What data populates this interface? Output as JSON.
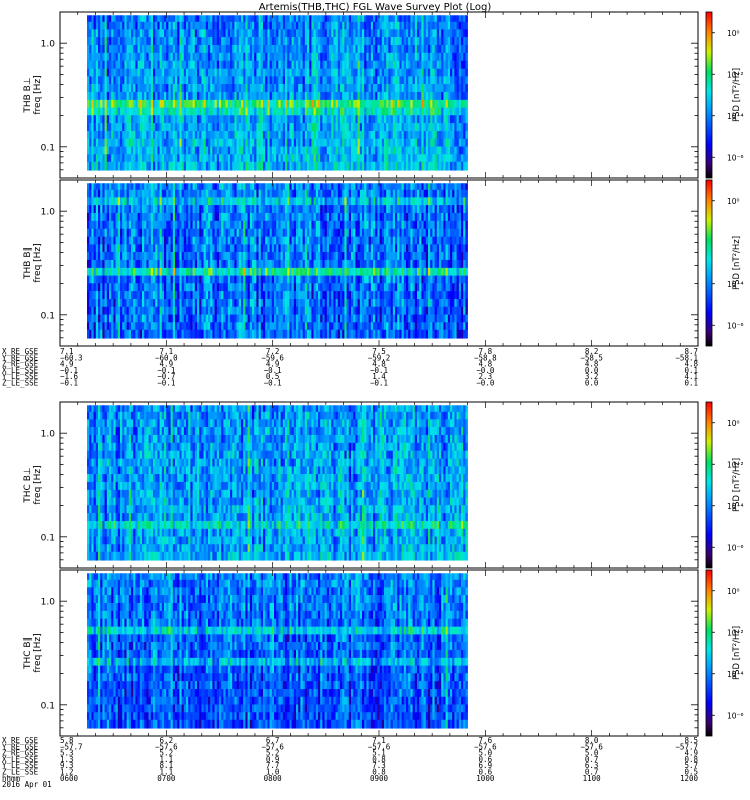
{
  "chart_data": {
    "type": "heatmap",
    "title": "Artemis(THB,THC) FGL Wave Survey Plot (Log)",
    "panels": [
      {
        "id": "thb-bperp",
        "ylabel_probe": "THB B⊥",
        "ylabel_unit": "freq [Hz]",
        "yticks": [
          "1.0",
          "0.1"
        ],
        "colorbar_label": "PSD [nT²/Hz]",
        "colorbar_ticks": [
          "10⁰",
          "10⁻²",
          "10⁻⁴",
          "10⁻⁶"
        ]
      },
      {
        "id": "thb-bpar",
        "ylabel_probe": "THB B∥",
        "ylabel_unit": "freq [Hz]",
        "yticks": [
          "1.0",
          "0.1"
        ],
        "colorbar_label": "PSD [nT²/Hz]",
        "colorbar_ticks": [
          "10⁰",
          "10⁻⁴",
          "10⁻⁶"
        ]
      },
      {
        "id": "thc-bperp",
        "ylabel_probe": "THC B⊥",
        "ylabel_unit": "freq [Hz]",
        "yticks": [
          "1.0",
          "0.1"
        ],
        "colorbar_label": "PSD [nT²/Hz]",
        "colorbar_ticks": [
          "10⁰",
          "10⁻²",
          "10⁻⁴",
          "10⁻⁶"
        ]
      },
      {
        "id": "thc-bpar",
        "ylabel_probe": "THC B∥",
        "ylabel_unit": "freq [Hz]",
        "yticks": [
          "1.0",
          "0.1"
        ],
        "colorbar_label": "PSD [nT²/Hz]",
        "colorbar_ticks": [
          "10⁰",
          "10⁻²",
          "10⁻⁴",
          "10⁻⁶"
        ]
      }
    ],
    "y_range": [
      0.05,
      2.0
    ],
    "y_scale": "log",
    "x_range": [
      "0600",
      "1200"
    ],
    "colorbar_range": [
      1e-07,
      10
    ],
    "colorbar_scale": "log",
    "data_coverage_end": "0950",
    "colormap": "rainbow",
    "bands_hz": [
      1.75,
      1.48,
      1.25,
      1.05,
      0.88,
      0.74,
      0.62,
      0.52,
      0.44,
      0.37,
      0.31,
      0.26,
      0.22,
      0.185,
      0.155,
      0.13,
      0.11,
      0.092,
      0.078,
      0.066
    ],
    "ephemeris_blocks": [
      {
        "id": "thb-ephem",
        "rows": [
          {
            "label": "X_RE_GSE",
            "values": [
              "7.1",
              "7.1",
              "7.2",
              "7.5",
              "7.8",
              "8.2",
              "8.7"
            ]
          },
          {
            "label": "Y_RE_GSE",
            "values": [
              "−60.3",
              "−60.0",
              "−59.6",
              "−59.2",
              "−58.8",
              "−58.5",
              "−58.1"
            ]
          },
          {
            "label": "Z_RE_GSE",
            "values": [
              "4.9",
              "4.9",
              "4.9",
              "4.8",
              "4.8",
              "4.8",
              "4.8"
            ]
          },
          {
            "label": "X_LE_SSE",
            "values": [
              "−0.1",
              "−0.1",
              "−0.1",
              "−0.1",
              "−0.0",
              "0.0",
              "0.1"
            ]
          },
          {
            "label": "Y_LE_SSE",
            "values": [
              "−1.6",
              "−0.7",
              "0.5",
              "1.4",
              "2.3",
              "3.2",
              "4.1"
            ]
          },
          {
            "label": "Z_LE_SSE",
            "values": [
              "−0.1",
              "−0.1",
              "−0.1",
              "−0.1",
              "−0.0",
              "0.0",
              "0.1"
            ]
          }
        ]
      },
      {
        "id": "thc-ephem",
        "rows": [
          {
            "label": "X_RE_GSE",
            "values": [
              "5.8",
              "6.2",
              "6.7",
              "7.1",
              "7.6",
              "8.0",
              "8.5"
            ]
          },
          {
            "label": "Y_RE_GSE",
            "values": [
              "−57.7",
              "−57.6",
              "−57.6",
              "−57.6",
              "−57.6",
              "−57.6",
              "−57.7"
            ]
          },
          {
            "label": "Z_RE_GSE",
            "values": [
              "5.3",
              "5.2",
              "5.2",
              "5.1",
              "5.0",
              "5.0",
              "4.9"
            ]
          },
          {
            "label": "X_LE_SSE",
            "values": [
              "1.3",
              "1.1",
              "0.9",
              "0.8",
              "0.6",
              "0.7",
              "0.8"
            ]
          },
          {
            "label": "Y_LE_SSE",
            "values": [
              "9.3",
              "8.1",
              "7.7",
              "7.3",
              "6.9",
              "6.3",
              "5.7"
            ]
          },
          {
            "label": "Z_LE_SSE",
            "values": [
              "1.2",
              "1.1",
              "1.0",
              "0.8",
              "0.6",
              "0.7",
              "0.5"
            ]
          }
        ]
      }
    ],
    "time_axis": {
      "label": "hhmm",
      "date_label": "2016 Apr 01",
      "ticks": [
        "0600",
        "0700",
        "0800",
        "0900",
        "1000",
        "1100",
        "1200"
      ]
    }
  }
}
